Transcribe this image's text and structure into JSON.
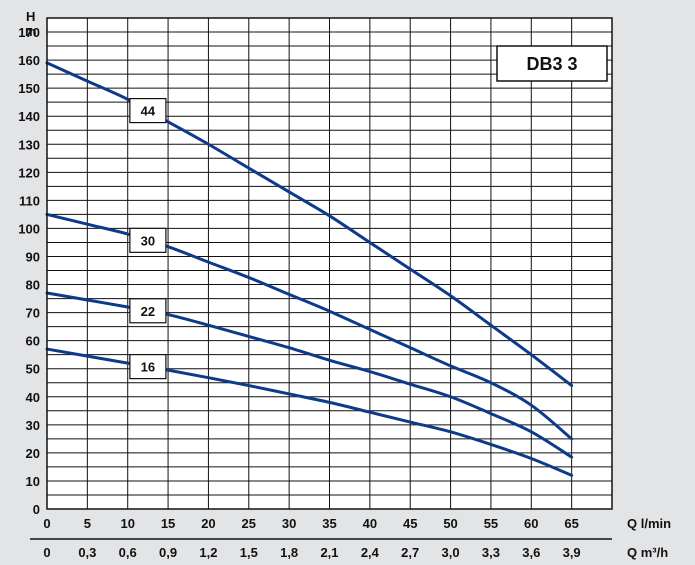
{
  "chart_data": {
    "type": "line",
    "title": "DB3 3",
    "y_axis": {
      "label_top": "H",
      "label_unit": "m",
      "range": [
        0,
        175
      ],
      "ticks": [
        0,
        10,
        20,
        30,
        40,
        50,
        60,
        70,
        80,
        90,
        100,
        110,
        120,
        130,
        140,
        150,
        160,
        170
      ]
    },
    "x_axis": {
      "label": "Q l/min",
      "range": [
        0,
        70
      ],
      "ticks": [
        0,
        5,
        10,
        15,
        20,
        25,
        30,
        35,
        40,
        45,
        50,
        55,
        60,
        65
      ]
    },
    "x_axis_secondary": {
      "label": "Q m³/h",
      "ticks": [
        "0",
        "0,3",
        "0,6",
        "0,9",
        "1,2",
        "1,5",
        "1,8",
        "2,1",
        "2,4",
        "2,7",
        "3,0",
        "3,3",
        "3,6",
        "3,9"
      ]
    },
    "grid": true,
    "series": [
      {
        "name": "44",
        "x": [
          0,
          5,
          10,
          15,
          20,
          25,
          30,
          35,
          40,
          45,
          50,
          55,
          60,
          65
        ],
        "y": [
          159,
          152.5,
          146,
          138,
          130,
          121.5,
          113,
          104.5,
          95,
          85.5,
          76,
          65.5,
          55,
          44
        ]
      },
      {
        "name": "30",
        "x": [
          0,
          5,
          10,
          15,
          20,
          25,
          30,
          35,
          40,
          45,
          50,
          55,
          60,
          65
        ],
        "y": [
          105,
          101.5,
          98,
          93.5,
          88,
          82.5,
          76.5,
          70.5,
          64,
          57.5,
          51,
          45,
          37,
          25
        ]
      },
      {
        "name": "22",
        "x": [
          0,
          5,
          10,
          15,
          20,
          25,
          30,
          35,
          40,
          45,
          50,
          55,
          60,
          65
        ],
        "y": [
          77,
          74.5,
          72,
          69.3,
          65.5,
          61.5,
          57.5,
          53,
          49,
          44.5,
          40,
          34,
          27.5,
          18.5
        ]
      },
      {
        "name": "16",
        "x": [
          0,
          5,
          10,
          15,
          20,
          25,
          30,
          35,
          40,
          45,
          50,
          55,
          60,
          65
        ],
        "y": [
          57,
          54.5,
          52,
          49.5,
          46.8,
          44,
          41,
          38,
          34.5,
          31,
          27.5,
          23,
          18,
          12
        ]
      }
    ],
    "curve_label_at_x": 12.5
  },
  "colors": {
    "curve": "#0d3b8c",
    "grid": "#111111",
    "plot_bg": "#ffffff",
    "page_bg": "#e3e4e6"
  }
}
